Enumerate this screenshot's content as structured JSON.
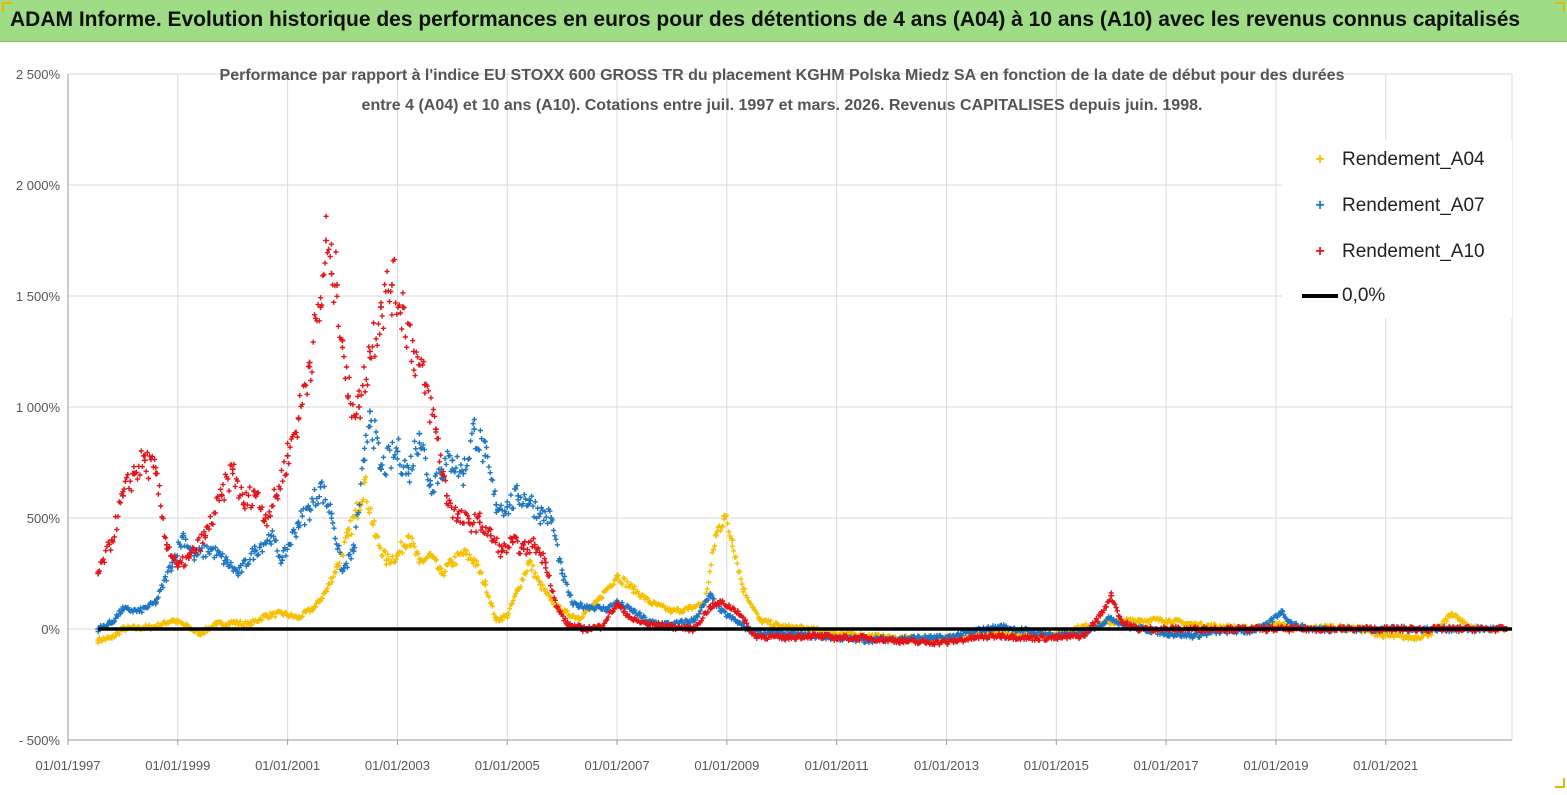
{
  "banner": {
    "title": "ADAM Informe. Evolution historique des performances en euros pour des détentions de 4 ans (A04) à 10 ans (A10) avec les revenus connus capitalisés"
  },
  "chart_data": {
    "type": "scatter",
    "title_line1": "Performance par rapport à l'indice EU STOXX 600 GROSS TR  du placement KGHM Polska Miedz SA en fonction de la date de début pour des durées",
    "title_line2": "entre 4 (A04) et 10 ans (A10). Cotations entre juil. 1997 et mars. 2026. Revenus CAPITALISES depuis juin. 1998.",
    "y_ticks": [
      -500,
      0,
      500,
      1000,
      1500,
      2000,
      2500
    ],
    "y_tick_labels": [
      "- 500%",
      "0%",
      "500%",
      "1 000%",
      "1 500%",
      "2 000%",
      "2 500%"
    ],
    "ylim": [
      -500,
      2500
    ],
    "x_ticks": [
      1997.0,
      1999.0,
      2001.0,
      2003.0,
      2005.0,
      2007.0,
      2009.0,
      2011.0,
      2013.0,
      2015.0,
      2017.0,
      2019.0,
      2021.0
    ],
    "x_tick_labels": [
      "01/01/1997",
      "01/01/1999",
      "01/01/2001",
      "01/01/2003",
      "01/01/2005",
      "01/01/2007",
      "01/01/2009",
      "01/01/2011",
      "01/01/2013",
      "01/01/2015",
      "01/01/2017",
      "01/01/2019",
      "01/01/2021"
    ],
    "xlim": [
      1997.0,
      2023.3
    ],
    "grid": true,
    "legend_position": "top-right",
    "series": [
      {
        "name": "Rendement_A04",
        "color": "#f5c000",
        "points": [
          [
            1997.55,
            -50
          ],
          [
            1997.8,
            -40
          ],
          [
            1998.0,
            0
          ],
          [
            1998.3,
            5
          ],
          [
            1998.6,
            10
          ],
          [
            1998.9,
            40
          ],
          [
            1999.1,
            20
          ],
          [
            1999.4,
            -20
          ],
          [
            1999.7,
            20
          ],
          [
            2000.0,
            30
          ],
          [
            2000.3,
            20
          ],
          [
            2000.6,
            60
          ],
          [
            2000.9,
            70
          ],
          [
            2001.2,
            50
          ],
          [
            2001.5,
            100
          ],
          [
            2001.7,
            170
          ],
          [
            2001.9,
            280
          ],
          [
            2002.1,
            420
          ],
          [
            2002.3,
            560
          ],
          [
            2002.4,
            660
          ],
          [
            2002.6,
            420
          ],
          [
            2002.8,
            310
          ],
          [
            2003.0,
            330
          ],
          [
            2003.2,
            420
          ],
          [
            2003.4,
            300
          ],
          [
            2003.6,
            330
          ],
          [
            2003.8,
            250
          ],
          [
            2004.0,
            300
          ],
          [
            2004.2,
            340
          ],
          [
            2004.4,
            310
          ],
          [
            2004.6,
            200
          ],
          [
            2004.8,
            40
          ],
          [
            2005.0,
            60
          ],
          [
            2005.2,
            180
          ],
          [
            2005.4,
            300
          ],
          [
            2005.6,
            200
          ],
          [
            2005.8,
            130
          ],
          [
            2006.0,
            80
          ],
          [
            2006.3,
            50
          ],
          [
            2006.6,
            110
          ],
          [
            2007.0,
            240
          ],
          [
            2007.3,
            180
          ],
          [
            2007.6,
            120
          ],
          [
            2008.0,
            80
          ],
          [
            2008.3,
            90
          ],
          [
            2008.6,
            120
          ],
          [
            2008.8,
            420
          ],
          [
            2008.95,
            510
          ],
          [
            2009.1,
            400
          ],
          [
            2009.3,
            180
          ],
          [
            2009.6,
            40
          ],
          [
            2010.0,
            10
          ],
          [
            2010.5,
            0
          ],
          [
            2011.0,
            -20
          ],
          [
            2011.5,
            -30
          ],
          [
            2012.0,
            -40
          ],
          [
            2012.5,
            -45
          ],
          [
            2013.0,
            -40
          ],
          [
            2013.5,
            -30
          ],
          [
            2014.0,
            -20
          ],
          [
            2014.5,
            -30
          ],
          [
            2015.0,
            -20
          ],
          [
            2015.5,
            10
          ],
          [
            2016.0,
            30
          ],
          [
            2016.5,
            40
          ],
          [
            2017.0,
            40
          ],
          [
            2017.5,
            20
          ],
          [
            2018.0,
            10
          ],
          [
            2018.5,
            0
          ],
          [
            2019.0,
            20
          ],
          [
            2019.5,
            0
          ],
          [
            2020.0,
            10
          ],
          [
            2020.5,
            0
          ],
          [
            2021.0,
            -30
          ],
          [
            2021.5,
            -40
          ],
          [
            2021.8,
            -20
          ],
          [
            2022.0,
            10
          ],
          [
            2022.2,
            70
          ],
          [
            2022.4,
            30
          ],
          [
            2022.7,
            0
          ],
          [
            2023.0,
            0
          ],
          [
            2023.2,
            0
          ]
        ]
      },
      {
        "name": "Rendement_A07",
        "color": "#1f77c4",
        "points": [
          [
            1997.55,
            0
          ],
          [
            1997.8,
            30
          ],
          [
            1998.0,
            90
          ],
          [
            1998.3,
            80
          ],
          [
            1998.6,
            120
          ],
          [
            1998.9,
            300
          ],
          [
            1999.1,
            420
          ],
          [
            1999.3,
            330
          ],
          [
            1999.6,
            360
          ],
          [
            1999.9,
            300
          ],
          [
            2000.1,
            250
          ],
          [
            2000.4,
            350
          ],
          [
            2000.7,
            420
          ],
          [
            2000.9,
            310
          ],
          [
            2001.2,
            480
          ],
          [
            2001.4,
            540
          ],
          [
            2001.6,
            640
          ],
          [
            2001.8,
            520
          ],
          [
            2002.0,
            260
          ],
          [
            2002.2,
            350
          ],
          [
            2002.4,
            760
          ],
          [
            2002.5,
            980
          ],
          [
            2002.7,
            720
          ],
          [
            2003.0,
            800
          ],
          [
            2003.2,
            700
          ],
          [
            2003.4,
            880
          ],
          [
            2003.6,
            650
          ],
          [
            2003.8,
            720
          ],
          [
            2004.0,
            760
          ],
          [
            2004.2,
            700
          ],
          [
            2004.4,
            900
          ],
          [
            2004.6,
            780
          ],
          [
            2004.8,
            560
          ],
          [
            2005.0,
            550
          ],
          [
            2005.2,
            600
          ],
          [
            2005.4,
            580
          ],
          [
            2005.6,
            520
          ],
          [
            2005.8,
            500
          ],
          [
            2006.0,
            250
          ],
          [
            2006.2,
            110
          ],
          [
            2006.5,
            100
          ],
          [
            2006.8,
            90
          ],
          [
            2007.0,
            120
          ],
          [
            2007.3,
            80
          ],
          [
            2007.6,
            30
          ],
          [
            2008.0,
            20
          ],
          [
            2008.4,
            40
          ],
          [
            2008.7,
            150
          ],
          [
            2008.9,
            80
          ],
          [
            2009.2,
            30
          ],
          [
            2009.5,
            -20
          ],
          [
            2010.0,
            -20
          ],
          [
            2010.5,
            -30
          ],
          [
            2011.0,
            -40
          ],
          [
            2011.5,
            -50
          ],
          [
            2012.0,
            -45
          ],
          [
            2012.5,
            -40
          ],
          [
            2013.0,
            -40
          ],
          [
            2013.5,
            -10
          ],
          [
            2014.0,
            10
          ],
          [
            2014.5,
            -10
          ],
          [
            2015.0,
            -30
          ],
          [
            2015.5,
            -20
          ],
          [
            2016.0,
            50
          ],
          [
            2016.3,
            10
          ],
          [
            2016.6,
            0
          ],
          [
            2017.0,
            -20
          ],
          [
            2017.5,
            -30
          ],
          [
            2018.0,
            -10
          ],
          [
            2018.5,
            -10
          ],
          [
            2018.8,
            10
          ],
          [
            2019.1,
            80
          ],
          [
            2019.3,
            20
          ],
          [
            2019.6,
            0
          ],
          [
            2020.0,
            0
          ],
          [
            2021.0,
            0
          ],
          [
            2022.0,
            0
          ],
          [
            2023.2,
            0
          ]
        ]
      },
      {
        "name": "Rendement_A10",
        "color": "#e3151b",
        "points": [
          [
            1997.55,
            250
          ],
          [
            1997.8,
            400
          ],
          [
            1998.0,
            600
          ],
          [
            1998.2,
            700
          ],
          [
            1998.4,
            760
          ],
          [
            1998.6,
            700
          ],
          [
            1998.8,
            380
          ],
          [
            1999.0,
            280
          ],
          [
            1999.2,
            320
          ],
          [
            1999.5,
            420
          ],
          [
            1999.8,
            600
          ],
          [
            2000.0,
            720
          ],
          [
            2000.2,
            560
          ],
          [
            2000.4,
            620
          ],
          [
            2000.6,
            500
          ],
          [
            2000.8,
            600
          ],
          [
            2001.0,
            780
          ],
          [
            2001.2,
            950
          ],
          [
            2001.4,
            1200
          ],
          [
            2001.6,
            1450
          ],
          [
            2001.7,
            1750
          ],
          [
            2001.8,
            1600
          ],
          [
            2001.9,
            1550
          ],
          [
            2002.0,
            1300
          ],
          [
            2002.1,
            1050
          ],
          [
            2002.3,
            1000
          ],
          [
            2002.5,
            1250
          ],
          [
            2002.7,
            1450
          ],
          [
            2002.9,
            1550
          ],
          [
            2003.1,
            1450
          ],
          [
            2003.3,
            1250
          ],
          [
            2003.5,
            1100
          ],
          [
            2003.7,
            900
          ],
          [
            2003.9,
            600
          ],
          [
            2004.1,
            500
          ],
          [
            2004.3,
            480
          ],
          [
            2004.5,
            480
          ],
          [
            2004.7,
            420
          ],
          [
            2004.9,
            350
          ],
          [
            2005.1,
            390
          ],
          [
            2005.3,
            360
          ],
          [
            2005.5,
            380
          ],
          [
            2005.7,
            300
          ],
          [
            2005.9,
            100
          ],
          [
            2006.1,
            20
          ],
          [
            2006.4,
            0
          ],
          [
            2006.7,
            10
          ],
          [
            2007.0,
            110
          ],
          [
            2007.3,
            40
          ],
          [
            2007.6,
            20
          ],
          [
            2008.0,
            10
          ],
          [
            2008.4,
            0
          ],
          [
            2008.7,
            100
          ],
          [
            2008.9,
            120
          ],
          [
            2009.2,
            80
          ],
          [
            2009.5,
            -30
          ],
          [
            2010.0,
            -40
          ],
          [
            2010.5,
            -30
          ],
          [
            2011.0,
            -40
          ],
          [
            2011.5,
            -40
          ],
          [
            2012.0,
            -50
          ],
          [
            2012.5,
            -60
          ],
          [
            2013.0,
            -60
          ],
          [
            2013.5,
            -40
          ],
          [
            2014.0,
            -30
          ],
          [
            2014.5,
            -40
          ],
          [
            2015.0,
            -40
          ],
          [
            2015.5,
            -30
          ],
          [
            2015.8,
            60
          ],
          [
            2016.0,
            150
          ],
          [
            2016.2,
            30
          ],
          [
            2016.5,
            0
          ],
          [
            2017.0,
            0
          ],
          [
            2018.0,
            0
          ],
          [
            2019.0,
            0
          ],
          [
            2020.0,
            0
          ],
          [
            2021.0,
            0
          ],
          [
            2022.0,
            0
          ],
          [
            2023.2,
            0
          ]
        ]
      },
      {
        "name": "0,0%",
        "color": "#000000",
        "type": "line",
        "points": [
          [
            1997.55,
            0
          ],
          [
            2023.3,
            0
          ]
        ]
      }
    ]
  }
}
